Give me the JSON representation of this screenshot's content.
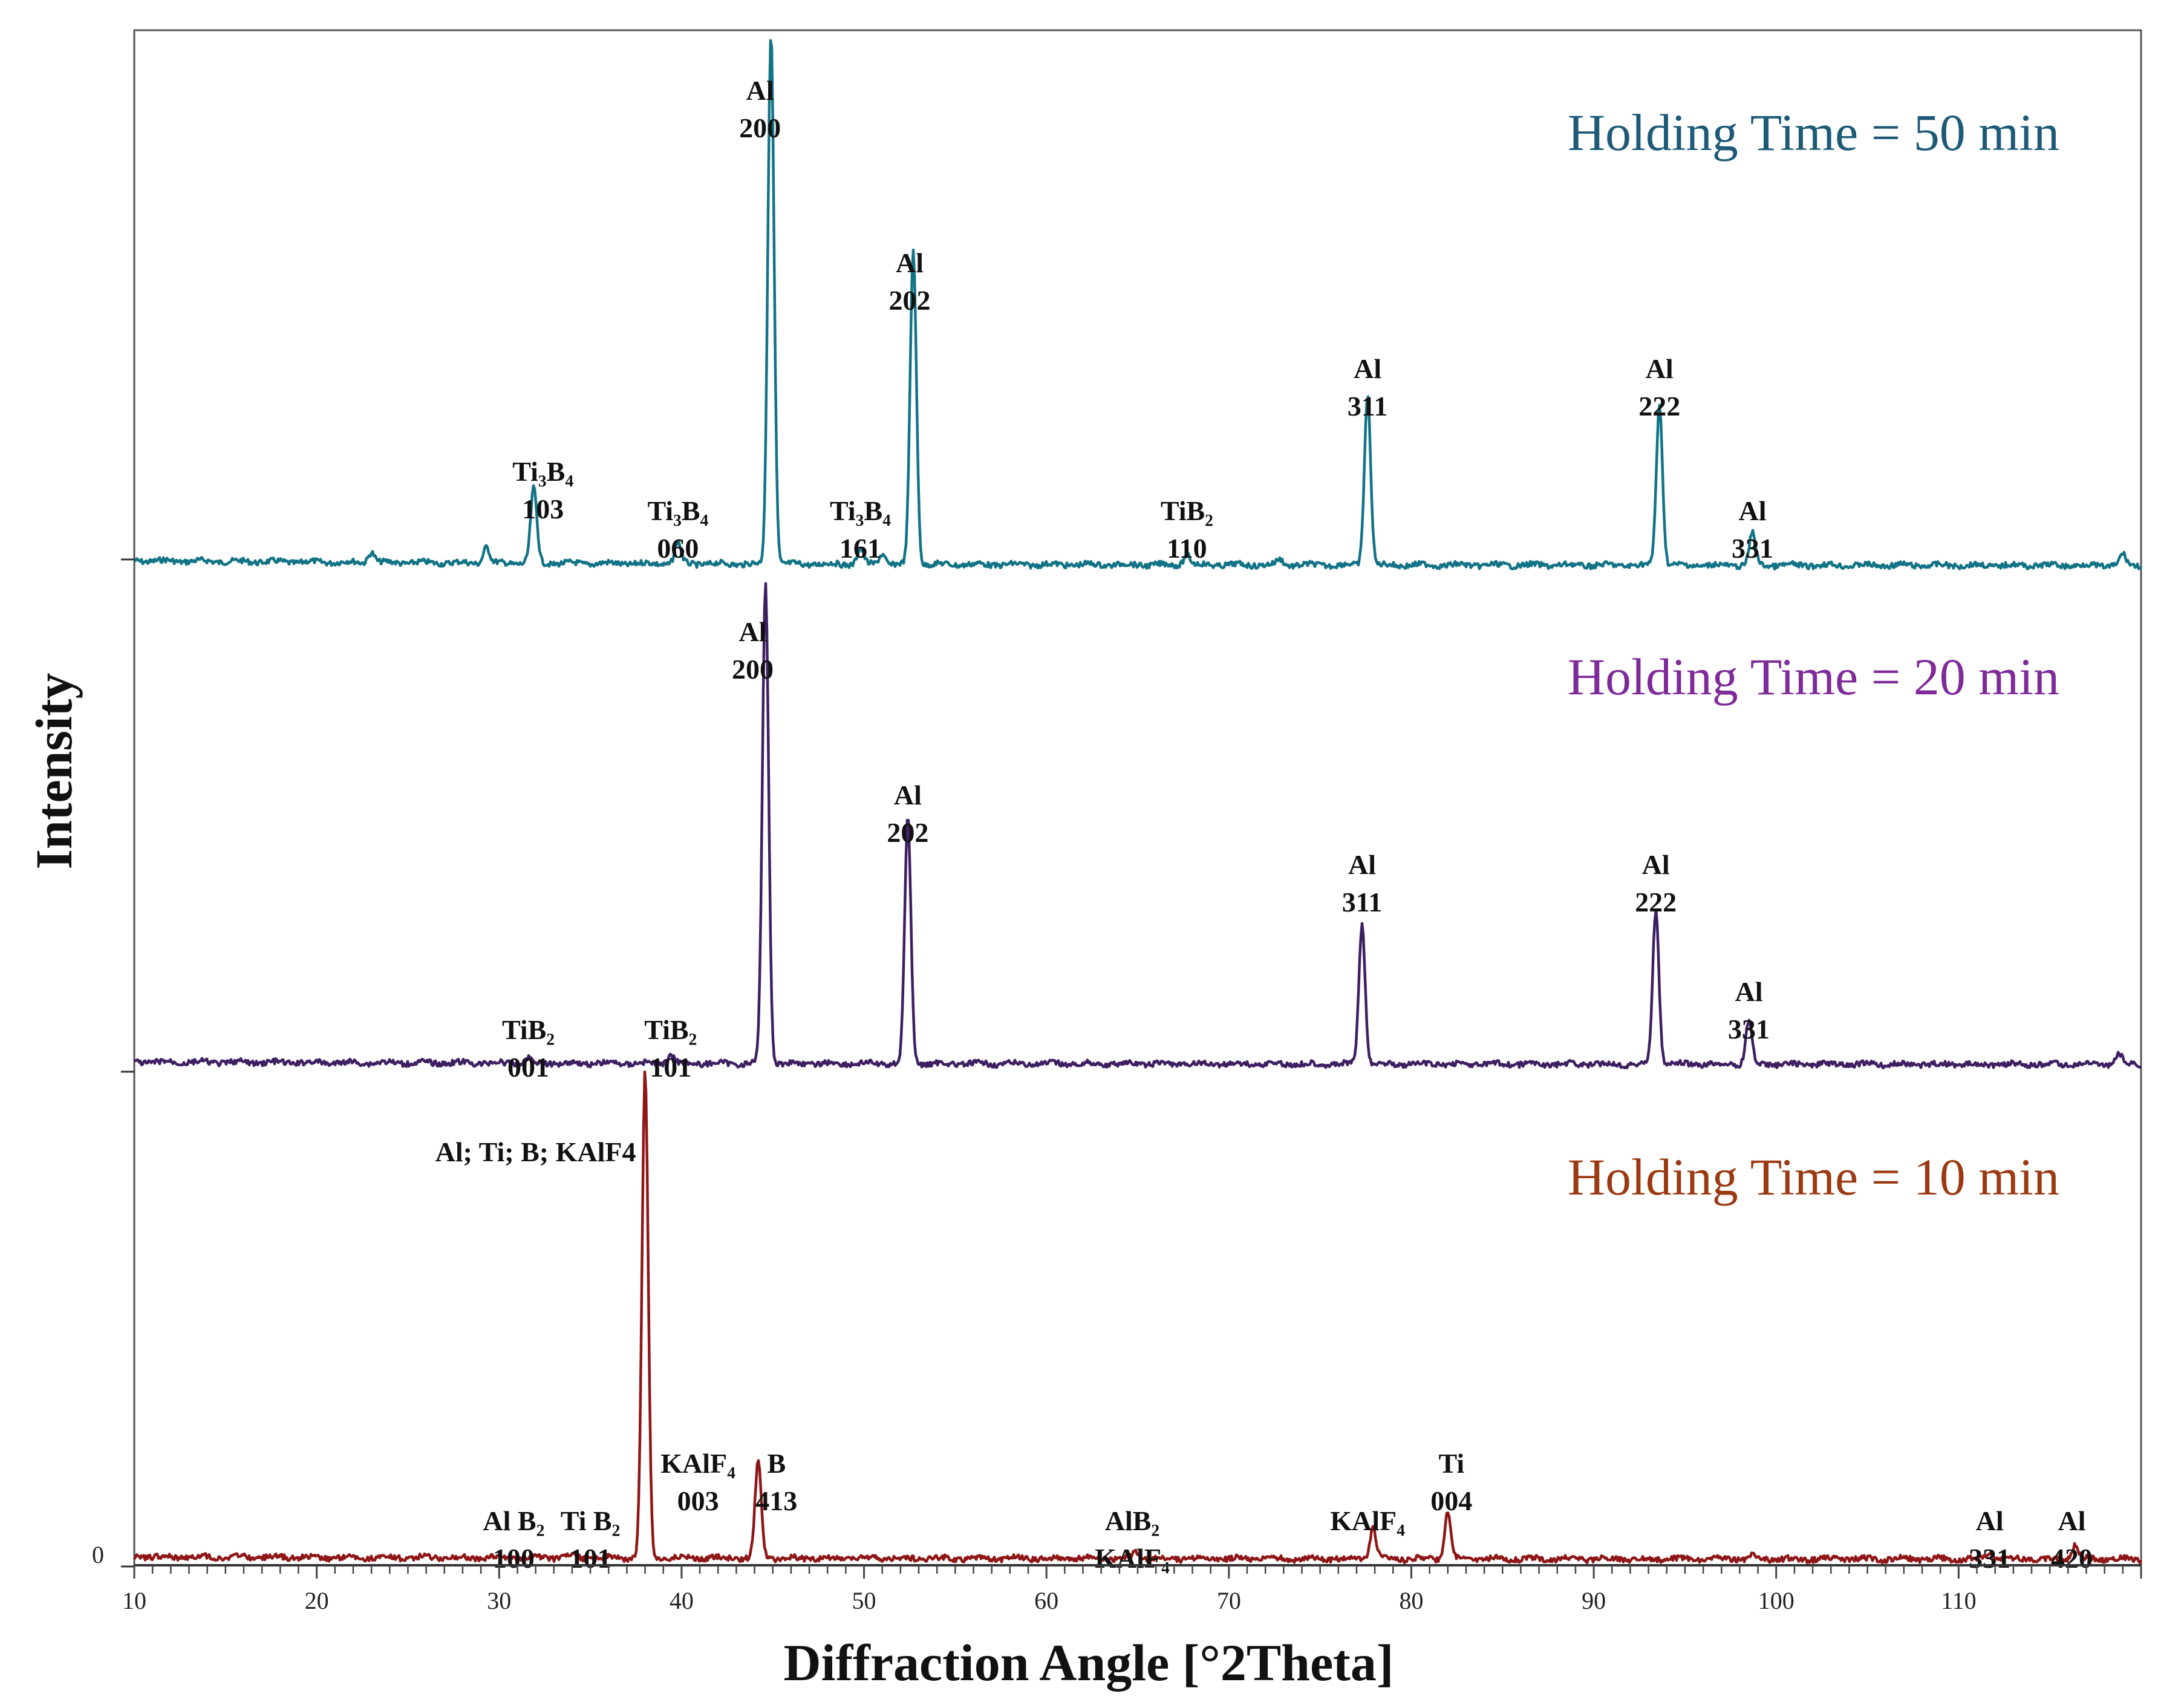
{
  "chart_data": {
    "type": "line",
    "xlabel": "Diffraction Angle [°2Theta]",
    "ylabel": "Intensity",
    "xlim": [
      10,
      120
    ],
    "xticks": [
      10,
      20,
      30,
      40,
      50,
      60,
      70,
      80,
      90,
      100,
      110
    ],
    "yticks": [
      "0"
    ],
    "colors": {
      "p50": "#127386",
      "p20": "#3e1f62",
      "p10": "#8f1616",
      "title50": "#1d5a78",
      "title20": "#7e2a99",
      "title10": "#9b3a12"
    },
    "panels": [
      {
        "id": "p50",
        "title": "Holding Time = 50 min",
        "peaks": [
          {
            "x": 23,
            "h": 0.02
          },
          {
            "x": 29.3,
            "h": 0.03
          },
          {
            "x": 31.9,
            "h": 0.14
          },
          {
            "x": 39.8,
            "h": 0.04
          },
          {
            "x": 44.9,
            "h": 1.0
          },
          {
            "x": 49.8,
            "h": 0.03
          },
          {
            "x": 51.0,
            "h": 0.02
          },
          {
            "x": 52.7,
            "h": 0.59
          },
          {
            "x": 67.7,
            "h": 0.02
          },
          {
            "x": 72.8,
            "h": 0.01
          },
          {
            "x": 77.6,
            "h": 0.32
          },
          {
            "x": 93.6,
            "h": 0.3
          },
          {
            "x": 98.7,
            "h": 0.06
          },
          {
            "x": 119.0,
            "h": 0.02
          }
        ],
        "labels": [
          {
            "x": 32.4,
            "tier": 1,
            "lines": [
              "Ti₃B₄",
              "103"
            ]
          },
          {
            "x": 39.8,
            "tier": 0,
            "lines": [
              "Ti₃B₄",
              "060"
            ]
          },
          {
            "x": 44.3,
            "tier": 4,
            "lines": [
              "Al",
              "200"
            ]
          },
          {
            "x": 49.8,
            "tier": 0,
            "lines": [
              "Ti₃B₄",
              "161"
            ]
          },
          {
            "x": 52.5,
            "tier": 3,
            "lines": [
              "Al",
              "202"
            ]
          },
          {
            "x": 67.7,
            "tier": 0,
            "lines": [
              "TiB₂",
              "110"
            ]
          },
          {
            "x": 77.6,
            "tier": 2,
            "lines": [
              "Al",
              "311"
            ]
          },
          {
            "x": 93.6,
            "tier": 2,
            "lines": [
              "Al",
              "222"
            ]
          },
          {
            "x": 98.7,
            "tier": 0,
            "lines": [
              "Al",
              "331"
            ]
          }
        ]
      },
      {
        "id": "p20",
        "title": "Holding Time = 20 min",
        "peaks": [
          {
            "x": 31.6,
            "h": 0.01
          },
          {
            "x": 39.4,
            "h": 0.02
          },
          {
            "x": 44.6,
            "h": 1.0
          },
          {
            "x": 52.4,
            "h": 0.51
          },
          {
            "x": 77.3,
            "h": 0.29
          },
          {
            "x": 93.4,
            "h": 0.32
          },
          {
            "x": 98.5,
            "h": 0.09
          },
          {
            "x": 118.8,
            "h": 0.02
          }
        ],
        "labels": [
          {
            "x": 31.6,
            "tier": 0,
            "lines": [
              "TiB₂",
              "001"
            ]
          },
          {
            "x": 39.4,
            "tier": 0,
            "lines": [
              "TiB₂",
              "101"
            ]
          },
          {
            "x": 43.9,
            "tier": 4,
            "lines": [
              "Al",
              "200"
            ]
          },
          {
            "x": 52.4,
            "tier": 3,
            "lines": [
              "Al",
              "202"
            ]
          },
          {
            "x": 77.3,
            "tier": 2,
            "lines": [
              "Al",
              "311"
            ]
          },
          {
            "x": 93.4,
            "tier": 2,
            "lines": [
              "Al",
              "222"
            ]
          },
          {
            "x": 98.5,
            "tier": 1,
            "lines": [
              "Al",
              "331"
            ]
          }
        ]
      },
      {
        "id": "p10",
        "title": "Holding Time = 10 min",
        "peaks": [
          {
            "x": 33.9,
            "h": 0.005
          },
          {
            "x": 38.0,
            "h": 1.0
          },
          {
            "x": 44.2,
            "h": 0.2
          },
          {
            "x": 64.9,
            "h": 0.015
          },
          {
            "x": 77.9,
            "h": 0.065
          },
          {
            "x": 82.0,
            "h": 0.1
          },
          {
            "x": 98.7,
            "h": 0.005
          },
          {
            "x": 111.7,
            "h": 0.015
          },
          {
            "x": 116.4,
            "h": 0.03
          }
        ],
        "labels": [
          {
            "x": 30.8,
            "tier": 0,
            "lines": [
              "Al B₂",
              "100"
            ]
          },
          {
            "x": 35.0,
            "tier": 0,
            "lines": [
              "Ti B₂",
              "101"
            ]
          },
          {
            "x": 40.9,
            "tier": 1,
            "lines": [
              "KAlF₄",
              "003"
            ]
          },
          {
            "x": 45.2,
            "tier": 1,
            "lines": [
              "B",
              "413"
            ]
          },
          {
            "x": 64.7,
            "tier": 0,
            "lines": [
              "AlB₂",
              "KAlF₄"
            ]
          },
          {
            "x": 77.6,
            "tier": 0,
            "lines": [
              "KAlF₄"
            ]
          },
          {
            "x": 82.2,
            "tier": 1,
            "lines": [
              "Ti",
              "004"
            ]
          },
          {
            "x": 111.7,
            "tier": 0,
            "lines": [
              "Al",
              "331"
            ]
          },
          {
            "x": 116.2,
            "tier": 0,
            "lines": [
              "Al",
              "420"
            ]
          },
          {
            "x": 32.0,
            "tier": 9,
            "lines": [
              "Al; Ti; B; KAlF4"
            ]
          }
        ]
      }
    ]
  }
}
